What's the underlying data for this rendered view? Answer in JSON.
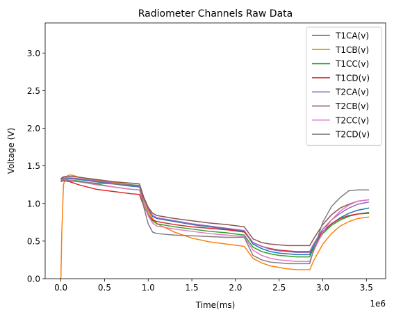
{
  "chart_data": {
    "type": "line",
    "title": "Radiometer Channels Raw Data",
    "xlabel": "Time(ms)",
    "ylabel": "Voltage (V)",
    "x_offset_label": "1e6",
    "xlim": [
      -0.18,
      3.72
    ],
    "ylim": [
      0.0,
      3.4
    ],
    "x_ticks": [
      0.0,
      0.5,
      1.0,
      1.5,
      2.0,
      2.5,
      3.0,
      3.5
    ],
    "x_tick_labels": [
      "0.0",
      "0.5",
      "1.0",
      "1.5",
      "2.0",
      "2.5",
      "3.0",
      "3.5"
    ],
    "y_ticks": [
      0.0,
      0.5,
      1.0,
      1.5,
      2.0,
      2.5,
      3.0
    ],
    "y_tick_labels": [
      "0.0",
      "0.5",
      "1.0",
      "1.5",
      "2.0",
      "2.5",
      "3.0"
    ],
    "grid": false,
    "legend_position": "top-right",
    "series": [
      {
        "name": "T1CA(v)",
        "color": "#1f77b4",
        "x": [
          0.0,
          0.02,
          0.05,
          0.1,
          0.2,
          0.4,
          0.6,
          0.8,
          0.9,
          0.95,
          1.0,
          1.05,
          1.1,
          1.3,
          1.5,
          1.7,
          1.9,
          2.1,
          2.15,
          2.2,
          2.3,
          2.4,
          2.5,
          2.6,
          2.7,
          2.85,
          2.9,
          3.0,
          3.1,
          3.2,
          3.3,
          3.4,
          3.53
        ],
        "values": [
          1.31,
          1.33,
          1.33,
          1.33,
          1.32,
          1.29,
          1.26,
          1.23,
          1.22,
          1.05,
          0.92,
          0.83,
          0.8,
          0.76,
          0.72,
          0.69,
          0.66,
          0.63,
          0.55,
          0.46,
          0.4,
          0.36,
          0.34,
          0.33,
          0.32,
          0.32,
          0.44,
          0.62,
          0.73,
          0.81,
          0.87,
          0.91,
          0.94
        ]
      },
      {
        "name": "T1CB(v)",
        "color": "#ff7f0e",
        "x": [
          0.0,
          0.01,
          0.03,
          0.06,
          0.1,
          0.15,
          0.2,
          0.4,
          0.6,
          0.8,
          0.9,
          0.95,
          1.0,
          1.05,
          1.1,
          1.3,
          1.5,
          1.7,
          1.9,
          2.1,
          2.15,
          2.2,
          2.3,
          2.4,
          2.5,
          2.6,
          2.7,
          2.85,
          2.9,
          3.0,
          3.1,
          3.2,
          3.3,
          3.4,
          3.53
        ],
        "values": [
          0.0,
          0.6,
          1.25,
          1.36,
          1.38,
          1.37,
          1.35,
          1.31,
          1.28,
          1.25,
          1.23,
          1.05,
          0.9,
          0.8,
          0.73,
          0.62,
          0.54,
          0.49,
          0.46,
          0.43,
          0.35,
          0.27,
          0.21,
          0.17,
          0.15,
          0.13,
          0.12,
          0.12,
          0.25,
          0.46,
          0.6,
          0.7,
          0.76,
          0.8,
          0.82
        ]
      },
      {
        "name": "T1CC(v)",
        "color": "#2ca02c",
        "x": [
          0.0,
          0.02,
          0.05,
          0.1,
          0.2,
          0.4,
          0.6,
          0.8,
          0.9,
          0.95,
          1.0,
          1.05,
          1.1,
          1.3,
          1.5,
          1.7,
          1.9,
          2.1,
          2.15,
          2.2,
          2.3,
          2.4,
          2.5,
          2.6,
          2.7,
          2.85,
          2.9,
          3.0,
          3.1,
          3.2,
          3.3,
          3.4,
          3.53
        ],
        "values": [
          1.3,
          1.32,
          1.32,
          1.31,
          1.3,
          1.26,
          1.22,
          1.19,
          1.18,
          1.0,
          0.86,
          0.77,
          0.73,
          0.69,
          0.66,
          0.63,
          0.61,
          0.58,
          0.5,
          0.42,
          0.36,
          0.33,
          0.31,
          0.3,
          0.29,
          0.29,
          0.42,
          0.6,
          0.71,
          0.78,
          0.83,
          0.86,
          0.88
        ]
      },
      {
        "name": "T1CD(v)",
        "color": "#d62728",
        "x": [
          0.0,
          0.02,
          0.05,
          0.1,
          0.2,
          0.4,
          0.6,
          0.8,
          0.9,
          0.95,
          1.0,
          1.05,
          1.1,
          1.3,
          1.5,
          1.7,
          1.9,
          2.1,
          2.15,
          2.2,
          2.3,
          2.4,
          2.5,
          2.6,
          2.7,
          2.85,
          2.9,
          3.0,
          3.1,
          3.2,
          3.3,
          3.4,
          3.53
        ],
        "values": [
          1.29,
          1.3,
          1.3,
          1.29,
          1.25,
          1.19,
          1.16,
          1.13,
          1.12,
          0.96,
          0.85,
          0.78,
          0.76,
          0.72,
          0.69,
          0.67,
          0.65,
          0.62,
          0.55,
          0.48,
          0.43,
          0.4,
          0.38,
          0.37,
          0.36,
          0.36,
          0.47,
          0.63,
          0.73,
          0.8,
          0.84,
          0.86,
          0.87
        ]
      },
      {
        "name": "T2CA(v)",
        "color": "#9467bd",
        "x": [
          0.0,
          0.02,
          0.05,
          0.1,
          0.2,
          0.4,
          0.6,
          0.8,
          0.9,
          0.95,
          1.0,
          1.05,
          1.1,
          1.3,
          1.5,
          1.7,
          1.9,
          2.1,
          2.15,
          2.2,
          2.3,
          2.4,
          2.5,
          2.6,
          2.7,
          2.85,
          2.9,
          3.0,
          3.1,
          3.2,
          3.3,
          3.4,
          3.53
        ],
        "values": [
          1.32,
          1.34,
          1.34,
          1.34,
          1.33,
          1.3,
          1.27,
          1.24,
          1.23,
          1.06,
          0.93,
          0.84,
          0.81,
          0.77,
          0.73,
          0.7,
          0.67,
          0.64,
          0.56,
          0.48,
          0.43,
          0.39,
          0.37,
          0.36,
          0.35,
          0.35,
          0.47,
          0.66,
          0.78,
          0.87,
          0.94,
          0.99,
          1.02
        ]
      },
      {
        "name": "T2CB(v)",
        "color": "#8c564b",
        "x": [
          0.0,
          0.02,
          0.05,
          0.1,
          0.2,
          0.4,
          0.6,
          0.8,
          0.9,
          0.95,
          1.0,
          1.05,
          1.1,
          1.3,
          1.5,
          1.7,
          1.9,
          2.1,
          2.15,
          2.2,
          2.3,
          2.4,
          2.5,
          2.6,
          2.7,
          2.85,
          2.9,
          3.0,
          3.1,
          3.2,
          3.3,
          3.4,
          3.53
        ],
        "values": [
          1.33,
          1.35,
          1.36,
          1.36,
          1.35,
          1.32,
          1.29,
          1.27,
          1.26,
          1.08,
          0.95,
          0.87,
          0.84,
          0.8,
          0.77,
          0.74,
          0.72,
          0.69,
          0.61,
          0.53,
          0.48,
          0.46,
          0.45,
          0.44,
          0.44,
          0.44,
          0.54,
          0.72,
          0.85,
          0.94,
          0.99,
          1.03,
          1.05
        ]
      },
      {
        "name": "T2CC(v)",
        "color": "#e377c2",
        "x": [
          0.0,
          0.02,
          0.05,
          0.1,
          0.2,
          0.4,
          0.6,
          0.8,
          0.9,
          0.95,
          1.0,
          1.05,
          1.1,
          1.3,
          1.5,
          1.7,
          1.9,
          2.1,
          2.15,
          2.2,
          2.3,
          2.4,
          2.5,
          2.6,
          2.7,
          2.85,
          2.9,
          3.0,
          3.1,
          3.2,
          3.3,
          3.4,
          3.53
        ],
        "values": [
          1.3,
          1.32,
          1.32,
          1.31,
          1.29,
          1.25,
          1.22,
          1.19,
          1.18,
          0.99,
          0.84,
          0.74,
          0.7,
          0.66,
          0.63,
          0.6,
          0.58,
          0.56,
          0.47,
          0.38,
          0.31,
          0.27,
          0.25,
          0.24,
          0.23,
          0.23,
          0.38,
          0.62,
          0.78,
          0.9,
          0.98,
          1.03,
          1.05
        ]
      },
      {
        "name": "T2CD(v)",
        "color": "#7f7f7f",
        "x": [
          0.0,
          0.02,
          0.05,
          0.1,
          0.2,
          0.4,
          0.6,
          0.8,
          0.9,
          0.95,
          1.0,
          1.05,
          1.1,
          1.3,
          1.5,
          1.7,
          1.9,
          2.1,
          2.15,
          2.2,
          2.3,
          2.4,
          2.5,
          2.6,
          2.7,
          2.85,
          2.9,
          3.0,
          3.1,
          3.2,
          3.3,
          3.4,
          3.53
        ],
        "values": [
          1.3,
          1.31,
          1.31,
          1.3,
          1.29,
          1.27,
          1.26,
          1.25,
          1.24,
          0.95,
          0.73,
          0.62,
          0.6,
          0.58,
          0.57,
          0.56,
          0.55,
          0.55,
          0.43,
          0.31,
          0.25,
          0.22,
          0.21,
          0.2,
          0.2,
          0.2,
          0.4,
          0.75,
          0.96,
          1.08,
          1.17,
          1.18,
          1.18
        ]
      }
    ]
  }
}
